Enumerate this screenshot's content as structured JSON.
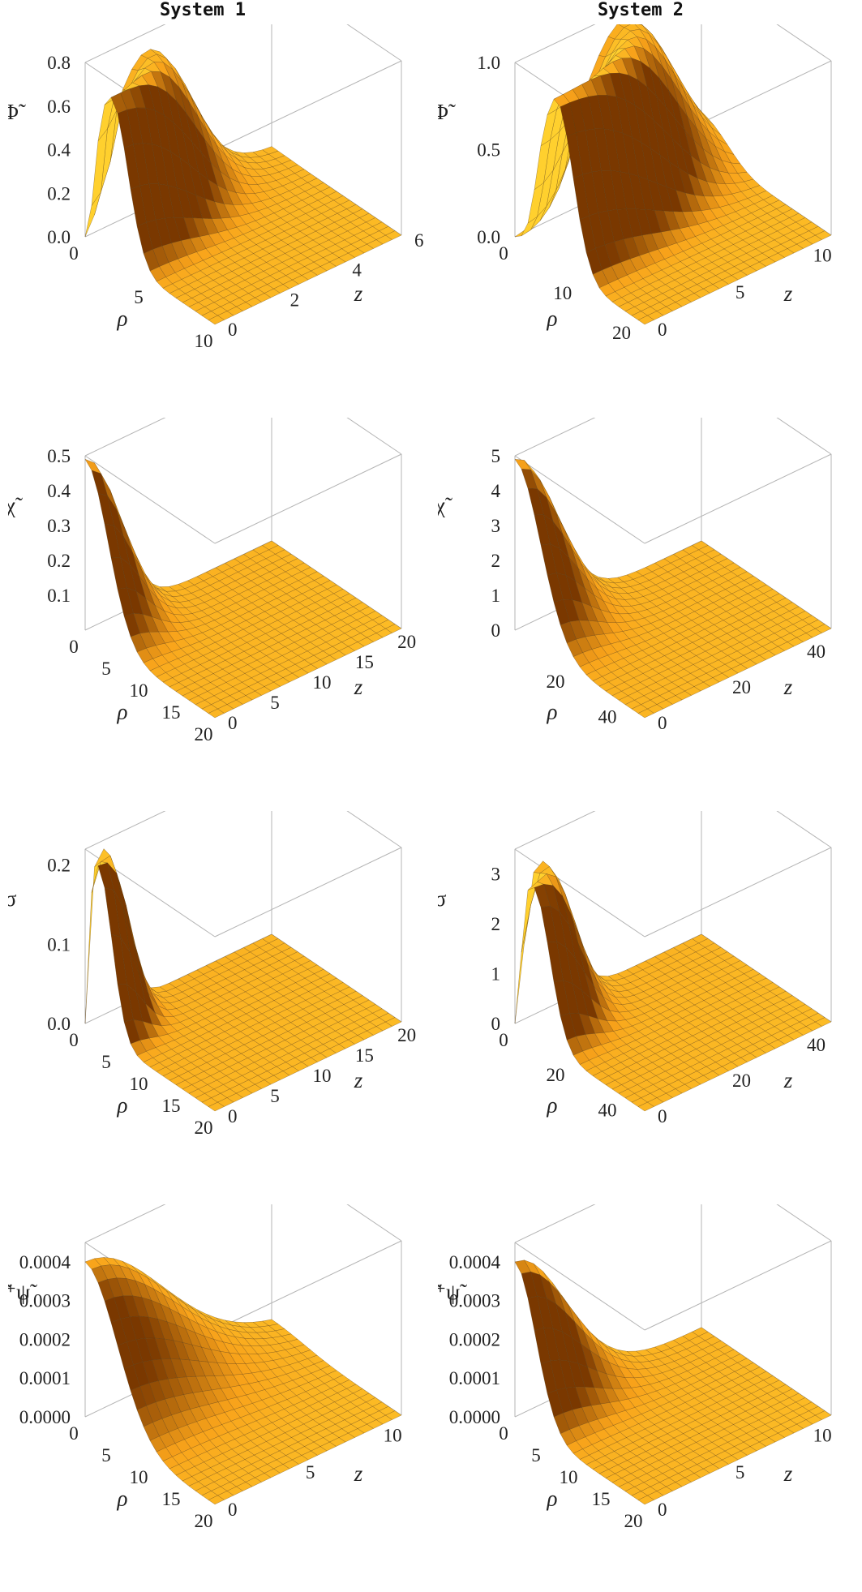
{
  "columns": [
    "System 1",
    "System 2"
  ],
  "colors": {
    "surface_light": "#ffd02e",
    "surface_mid": "#f8a21a",
    "surface_dark": "#7a3800",
    "mesh": "#5a3a10",
    "box": "#b4b4b4"
  },
  "chart_data": [
    {
      "type": "surface3d",
      "system": "System 1",
      "row": 1,
      "zlabel": "Φ̃",
      "xlabel": "ρ",
      "ylabel": "z",
      "xlim": [
        0,
        10
      ],
      "ylim": [
        0,
        6
      ],
      "zlim": [
        0,
        0.8
      ],
      "x_ticks": [
        "0",
        "5",
        "10"
      ],
      "y_ticks": [
        "0",
        "2",
        "4",
        "6"
      ],
      "z_ticks": [
        "0.0",
        "0.2",
        "0.4",
        "0.6",
        "0.8"
      ],
      "profile": "ring",
      "peak": 0.72,
      "peak_rho": 2.0,
      "width": 1.8
    },
    {
      "type": "surface3d",
      "system": "System 2",
      "row": 1,
      "zlabel": "Φ̃",
      "xlabel": "ρ",
      "ylabel": "z",
      "xlim": [
        0,
        22
      ],
      "ylim": [
        0,
        12
      ],
      "zlim": [
        0,
        1.0
      ],
      "x_ticks": [
        "0",
        "10",
        "20"
      ],
      "y_ticks": [
        "0",
        "5",
        "10"
      ],
      "z_ticks": [
        "0.0",
        "0.5",
        "1.0"
      ],
      "profile": "ring",
      "peak": 0.95,
      "peak_rho": 7.0,
      "width": 4.0
    },
    {
      "type": "surface3d",
      "system": "System 1",
      "row": 2,
      "zlabel": "χ̃",
      "xlabel": "ρ",
      "ylabel": "z",
      "xlim": [
        0,
        20
      ],
      "ylim": [
        0,
        22
      ],
      "zlim": [
        0,
        0.5
      ],
      "x_ticks": [
        "0",
        "5",
        "10",
        "15",
        "20"
      ],
      "y_ticks": [
        "0",
        "5",
        "10",
        "15",
        "20"
      ],
      "z_ticks": [
        "0.1",
        "0.2",
        "0.3",
        "0.4",
        "0.5"
      ],
      "profile": "center",
      "peak": 0.49,
      "width": 5.0
    },
    {
      "type": "surface3d",
      "system": "System 2",
      "row": 2,
      "zlabel": "χ̃",
      "xlabel": "ρ",
      "ylabel": "z",
      "xlim": [
        0,
        50
      ],
      "ylim": [
        0,
        50
      ],
      "zlim": [
        0,
        5
      ],
      "x_ticks": [
        "20",
        "40"
      ],
      "y_ticks": [
        "0",
        "20",
        "40"
      ],
      "z_ticks": [
        "0",
        "1",
        "2",
        "3",
        "4",
        "5"
      ],
      "profile": "center",
      "peak": 4.9,
      "width": 14.0
    },
    {
      "type": "surface3d",
      "system": "System 1",
      "row": 3,
      "zlabel": "σ",
      "xlabel": "ρ",
      "ylabel": "z",
      "xlim": [
        0,
        20
      ],
      "ylim": [
        0,
        22
      ],
      "zlim": [
        0,
        0.22
      ],
      "x_ticks": [
        "0",
        "5",
        "10",
        "15",
        "20"
      ],
      "y_ticks": [
        "0",
        "5",
        "10",
        "15",
        "20"
      ],
      "z_ticks": [
        "0.0",
        "0.1",
        "0.2"
      ],
      "profile": "ring",
      "peak": 0.21,
      "peak_rho": 2.0,
      "width": 3.0
    },
    {
      "type": "surface3d",
      "system": "System 2",
      "row": 3,
      "zlabel": "σ",
      "xlabel": "ρ",
      "ylabel": "z",
      "xlim": [
        0,
        50
      ],
      "ylim": [
        0,
        50
      ],
      "zlim": [
        0,
        3.5
      ],
      "x_ticks": [
        "0",
        "20",
        "40"
      ],
      "y_ticks": [
        "0",
        "20",
        "40"
      ],
      "z_ticks": [
        "0",
        "1",
        "2",
        "3"
      ],
      "profile": "ring",
      "peak": 3.0,
      "peak_rho": 7.0,
      "width": 9.0
    },
    {
      "type": "surface3d",
      "system": "System 1",
      "row": 4,
      "zlabel": "ψ̃⁺ψ̃",
      "xlabel": "ρ",
      "ylabel": "z",
      "xlim": [
        0,
        20
      ],
      "ylim": [
        0,
        12
      ],
      "zlim": [
        0,
        0.00045
      ],
      "x_ticks": [
        "0",
        "5",
        "10",
        "15",
        "20"
      ],
      "y_ticks": [
        "0",
        "5",
        "10"
      ],
      "z_ticks": [
        "0.0000",
        "0.0001",
        "0.0002",
        "0.0003",
        "0.0004"
      ],
      "profile": "center",
      "peak": 0.0004,
      "width": 7.0
    },
    {
      "type": "surface3d",
      "system": "System 2",
      "row": 4,
      "zlabel": "ψ̃⁺ψ̃",
      "xlabel": "ρ",
      "ylabel": "z",
      "xlim": [
        0,
        20
      ],
      "ylim": [
        0,
        12
      ],
      "zlim": [
        0,
        0.00045
      ],
      "x_ticks": [
        "0",
        "5",
        "10",
        "15",
        "20"
      ],
      "y_ticks": [
        "0",
        "5",
        "10"
      ],
      "z_ticks": [
        "0.0000",
        "0.0001",
        "0.0002",
        "0.0003",
        "0.0004"
      ],
      "profile": "center",
      "peak": 0.0004,
      "width": 4.5
    }
  ]
}
